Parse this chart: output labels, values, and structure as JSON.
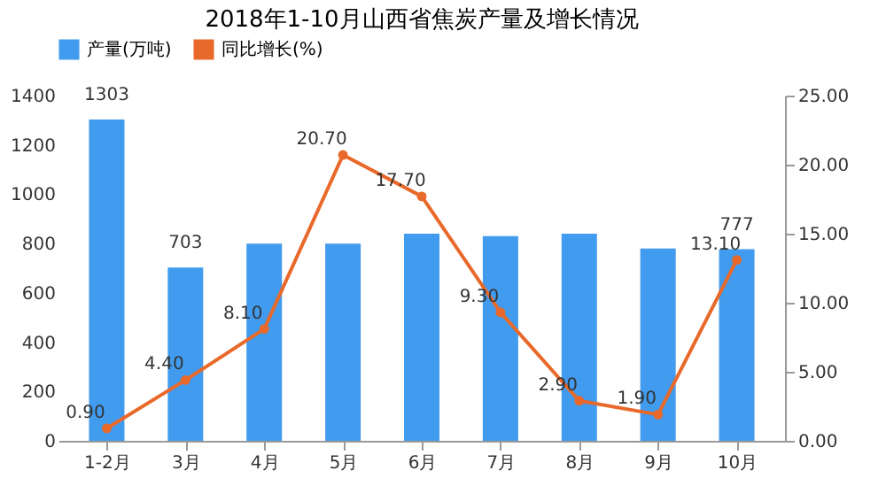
{
  "chart_data": {
    "type": "bar",
    "title": "2018年1-10月山西省焦炭产量及增长情况",
    "categories": [
      "1-2月",
      "3月",
      "4月",
      "5月",
      "6月",
      "7月",
      "8月",
      "9月",
      "10月"
    ],
    "series": [
      {
        "name": "产量(万吨)",
        "color": "#419bee",
        "values": [
          1303,
          703,
          800,
          800,
          840,
          830,
          840,
          780,
          777
        ],
        "value_labels": [
          "1303",
          "703",
          null,
          null,
          null,
          null,
          null,
          null,
          "777"
        ]
      },
      {
        "name": "同比增长(%)",
        "type": "line",
        "axis": "y2",
        "color": "#e8692a",
        "marker": "circle",
        "values": [
          0.9,
          4.4,
          8.1,
          20.7,
          17.7,
          9.3,
          2.9,
          1.9,
          13.1
        ],
        "value_labels": [
          "0.90",
          "4.40",
          "8.10",
          "20.70",
          "17.70",
          "9.30",
          "2.90",
          "1.90",
          "13.10"
        ]
      }
    ],
    "ylim": [
      0,
      1400
    ],
    "yticks": [
      0,
      200,
      400,
      600,
      800,
      1000,
      1200,
      1400
    ],
    "y2lim": [
      0,
      25
    ],
    "y2ticks": [
      {
        "value": 0,
        "label": "0.00"
      },
      {
        "value": 5,
        "label": "5.00"
      },
      {
        "value": 10,
        "label": "10.00"
      },
      {
        "value": 15,
        "label": "15.00"
      },
      {
        "value": 20,
        "label": "20.00"
      },
      {
        "value": 25,
        "label": "25.00"
      }
    ],
    "legend": "top",
    "grid": false
  }
}
